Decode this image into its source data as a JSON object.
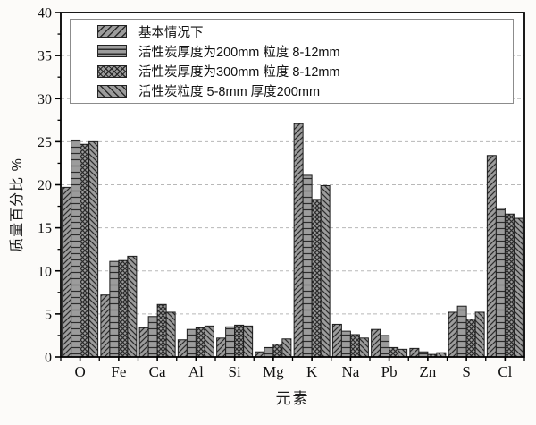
{
  "figure": {
    "background": "#fcfbf9",
    "plot_background": "#ffffff",
    "bar_fill": "#9c9c9c",
    "hatch_color": "#2b2b2b",
    "bar_border": "#1c1c1c",
    "grid_color": "#b8b8b8",
    "axis_color": "#000000",
    "legend_border": "#8c8c8c"
  },
  "chart_data": {
    "type": "bar",
    "title": "",
    "xlabel": "元素",
    "ylabel": "质量百分比  %",
    "ylim": [
      0,
      40
    ],
    "yticks": [
      0,
      5,
      10,
      15,
      20,
      25,
      30,
      35,
      40
    ],
    "minor_ytick_step": 2.5,
    "grid": "horizontal dashed at major ticks 5-35",
    "legend_position": "upper-left inside plot",
    "categories": [
      "O",
      "Fe",
      "Ca",
      "Al",
      "Si",
      "Mg",
      "K",
      "Na",
      "Pb",
      "Zn",
      "S",
      "Cl"
    ],
    "series": [
      {
        "name": "基本情况下",
        "hatch": "diagonal-forward",
        "values": [
          19.7,
          7.2,
          3.4,
          2.0,
          2.2,
          0.6,
          27.1,
          3.8,
          3.2,
          1.0,
          5.2,
          23.4
        ]
      },
      {
        "name": "活性炭厚度为200mm 粒度 8-12mm",
        "hatch": "horizontal",
        "values": [
          25.2,
          11.1,
          4.7,
          3.2,
          3.5,
          1.1,
          21.1,
          3.0,
          2.5,
          0.6,
          5.9,
          17.3
        ]
      },
      {
        "name": "活性炭厚度为300mm 粒度 8-12mm",
        "hatch": "crosshatch",
        "values": [
          24.7,
          11.2,
          6.1,
          3.4,
          3.7,
          1.5,
          18.3,
          2.6,
          1.1,
          0.3,
          4.4,
          16.6
        ]
      },
      {
        "name": "活性炭粒度 5-8mm 厚度200mm",
        "hatch": "diagonal-back",
        "values": [
          25.0,
          11.7,
          5.2,
          3.6,
          3.6,
          2.1,
          19.9,
          2.2,
          0.9,
          0.5,
          5.2,
          16.1
        ]
      }
    ]
  }
}
